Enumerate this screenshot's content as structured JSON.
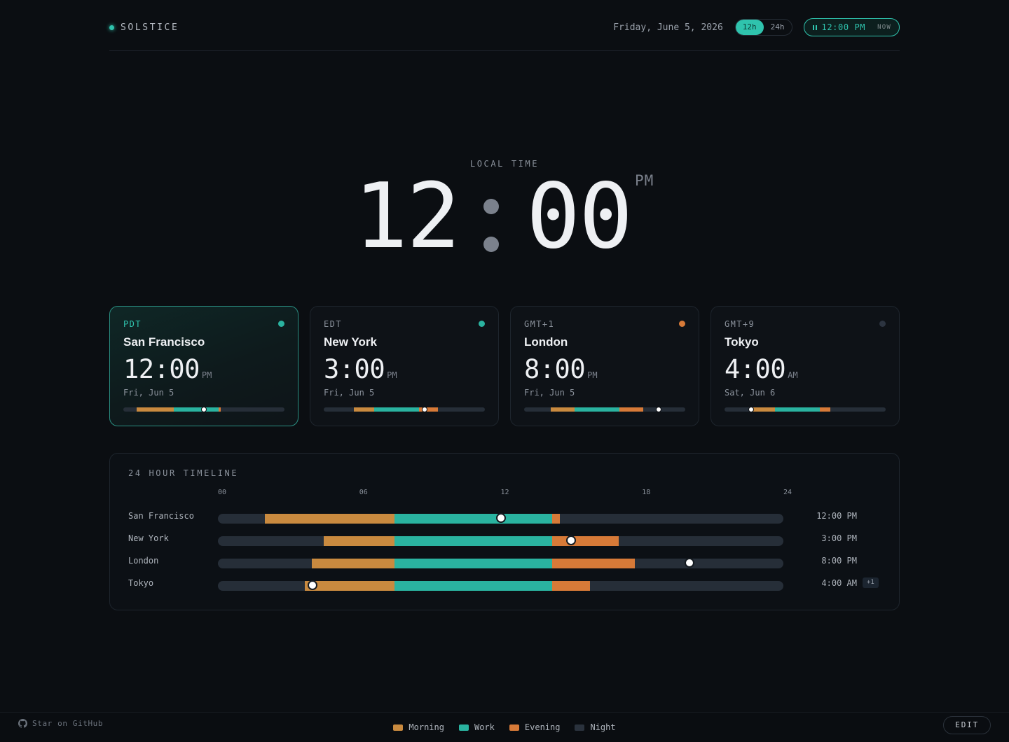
{
  "app": {
    "name": "SOLSTICE"
  },
  "header": {
    "date": "Friday, June 5, 2026",
    "format_options": [
      "12h",
      "24h"
    ],
    "format_selected": "12h",
    "now_time": "12:00 PM",
    "now_label": "NOW"
  },
  "hero": {
    "label": "LOCAL TIME",
    "hours": "12",
    "minutes": "00",
    "ampm": "PM"
  },
  "colors": {
    "morning": "#c98a3f",
    "work": "#2ab3a0",
    "evening": "#d77a38",
    "night": "#262e38",
    "accent": "#2fc3ad"
  },
  "cities": [
    {
      "tz": "PDT",
      "name": "San Francisco",
      "time": "12:00",
      "ampm": "PM",
      "date": "Fri, Jun 5",
      "timeline_time": "12:00 PM",
      "status": "work",
      "status_color": "#2ab3a0",
      "day_offset": "",
      "hour": 12,
      "segments": [
        {
          "phase": "morning",
          "start": 2,
          "end": 7.5
        },
        {
          "phase": "work",
          "start": 7.5,
          "end": 14.2
        },
        {
          "phase": "evening",
          "start": 14.2,
          "end": 14.5
        }
      ]
    },
    {
      "tz": "EDT",
      "name": "New York",
      "time": "3:00",
      "ampm": "PM",
      "date": "Fri, Jun 5",
      "timeline_time": "3:00 PM",
      "status": "work",
      "status_color": "#2ab3a0",
      "day_offset": "",
      "hour": 15,
      "segments": [
        {
          "phase": "morning",
          "start": 4.5,
          "end": 7.5
        },
        {
          "phase": "work",
          "start": 7.5,
          "end": 14.2
        },
        {
          "phase": "evening",
          "start": 14.2,
          "end": 17
        }
      ]
    },
    {
      "tz": "GMT+1",
      "name": "London",
      "time": "8:00",
      "ampm": "PM",
      "date": "Fri, Jun 5",
      "timeline_time": "8:00 PM",
      "status": "evening",
      "status_color": "#d77a38",
      "day_offset": "",
      "hour": 20,
      "segments": [
        {
          "phase": "morning",
          "start": 4,
          "end": 7.5
        },
        {
          "phase": "work",
          "start": 7.5,
          "end": 14.2
        },
        {
          "phase": "evening",
          "start": 14.2,
          "end": 17.7
        }
      ]
    },
    {
      "tz": "GMT+9",
      "name": "Tokyo",
      "time": "4:00",
      "ampm": "AM",
      "date": "Sat, Jun 6",
      "timeline_time": "4:00 AM",
      "status": "night",
      "status_color": "#2c3440",
      "day_offset": "+1",
      "hour": 4,
      "segments": [
        {
          "phase": "morning",
          "start": 3.7,
          "end": 7.5
        },
        {
          "phase": "work",
          "start": 7.5,
          "end": 14.2
        },
        {
          "phase": "evening",
          "start": 14.2,
          "end": 15.8
        }
      ]
    }
  ],
  "timeline": {
    "title": "24 HOUR TIMELINE",
    "ticks": [
      "00",
      "06",
      "12",
      "18",
      "24"
    ]
  },
  "footer": {
    "github_label": "Star on GitHub",
    "legend": [
      {
        "label": "Morning",
        "phase": "morning"
      },
      {
        "label": "Work",
        "phase": "work"
      },
      {
        "label": "Evening",
        "phase": "evening"
      },
      {
        "label": "Night",
        "phase": "night"
      }
    ],
    "edit_label": "EDIT"
  }
}
